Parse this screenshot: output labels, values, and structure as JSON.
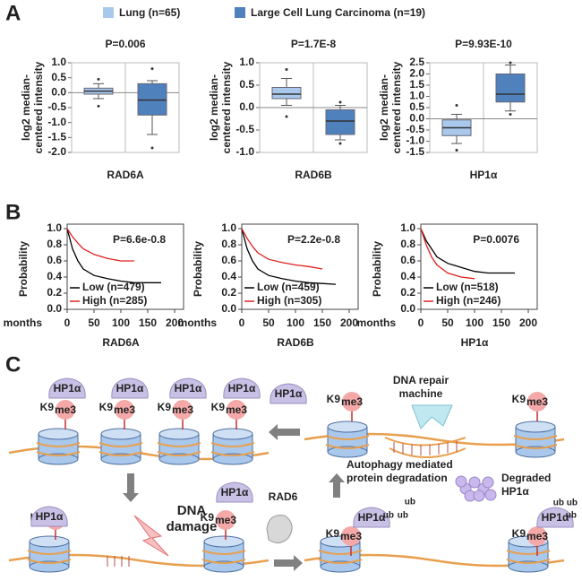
{
  "panels": [
    "A",
    "B",
    "C"
  ],
  "legend": [
    {
      "name": "Lung (n=65)",
      "color": "#a9c8ec"
    },
    {
      "name": "Large Cell Lung Carcinoma (n=19)",
      "color": "#4f81bd"
    }
  ],
  "chart_data": [
    {
      "type": "box",
      "title": "P=0.006",
      "ylabel": [
        "log2 median-",
        "centered intensity"
      ],
      "xlabel": "RAD6A",
      "ylim": [
        -2.0,
        1.0
      ],
      "yticks": [
        {
          "value": 1.0,
          "label": "1.0"
        },
        {
          "value": 0.5,
          "label": "0.5"
        },
        {
          "value": 0.0,
          "label": "0.0"
        },
        {
          "value": -0.5,
          "label": "-0.5"
        },
        {
          "value": -1.0,
          "label": "-1.0"
        },
        {
          "value": -1.5,
          "label": "-1.5"
        },
        {
          "value": -2.0,
          "label": "-2.0"
        }
      ],
      "boxes": [
        {
          "whislo": -0.2,
          "q1": -0.05,
          "med": 0.05,
          "q3": 0.15,
          "whishi": 0.3,
          "fliers": [
            0.45,
            -0.45
          ]
        },
        {
          "whislo": -1.4,
          "q1": -0.75,
          "med": -0.25,
          "q3": 0.3,
          "whishi": 0.4,
          "fliers": [
            0.8,
            -1.85
          ]
        }
      ]
    },
    {
      "type": "box",
      "title": "P=1.7E-8",
      "ylabel": [
        "log2 median-",
        "centered intensity"
      ],
      "xlabel": "RAD6B",
      "ylim": [
        -1.0,
        1.0
      ],
      "yticks": [
        {
          "value": 1.0,
          "label": "1.0"
        },
        {
          "value": 0.5,
          "label": "0.5"
        },
        {
          "value": 0.0,
          "label": "0.0"
        },
        {
          "value": -0.5,
          "label": "-0.5"
        },
        {
          "value": -1.0,
          "label": "-1.0"
        }
      ],
      "boxes": [
        {
          "whislo": 0.05,
          "q1": 0.2,
          "med": 0.3,
          "q3": 0.45,
          "whishi": 0.65,
          "fliers": [
            0.85,
            -0.2
          ]
        },
        {
          "whislo": -0.72,
          "q1": -0.6,
          "med": -0.3,
          "q3": -0.05,
          "whishi": 0.05,
          "fliers": [
            0.12,
            -0.8
          ]
        }
      ]
    },
    {
      "type": "box",
      "title": "P=9.93E-10",
      "ylabel": [
        "log2 median-",
        "centered intensity"
      ],
      "xlabel": "HP1α",
      "ylim": [
        -1.5,
        2.5
      ],
      "yticks": [
        {
          "value": 2.5,
          "label": "2.5"
        },
        {
          "value": 2.0,
          "label": "2.0"
        },
        {
          "value": 1.5,
          "label": "1.5"
        },
        {
          "value": 1.0,
          "label": "1.0"
        },
        {
          "value": 0.5,
          "label": "0.5"
        },
        {
          "value": 0.0,
          "label": "0.0"
        },
        {
          "value": -0.5,
          "label": "-0.5"
        },
        {
          "value": -1.0,
          "label": "-1.0"
        },
        {
          "value": -1.5,
          "label": "-1.5"
        }
      ],
      "boxes": [
        {
          "whislo": -1.1,
          "q1": -0.75,
          "med": -0.4,
          "q3": -0.05,
          "whishi": 0.2,
          "fliers": [
            0.6,
            -1.4
          ]
        },
        {
          "whislo": 0.35,
          "q1": 0.75,
          "med": 1.1,
          "q3": 2.0,
          "whishi": 2.4,
          "fliers": [
            2.5,
            0.2
          ]
        }
      ]
    },
    {
      "type": "line",
      "title": "P=6.6e-0.8",
      "ylabel": "Probability",
      "xunit": "months",
      "xlabel": "RAD6A",
      "xlim": [
        0,
        200
      ],
      "xticks": [
        0,
        50,
        100,
        150,
        200
      ],
      "ylim": [
        0,
        1
      ],
      "yticks": [
        {
          "value": 0,
          "label": "0.0"
        },
        {
          "value": 0.2,
          "label": "0.2"
        },
        {
          "value": 0.4,
          "label": "0.4"
        },
        {
          "value": 0.6,
          "label": "0.6"
        },
        {
          "value": 0.8,
          "label": "0.8"
        },
        {
          "value": 1,
          "label": "1.0"
        }
      ],
      "x": [
        0,
        10,
        20,
        30,
        50,
        75,
        100,
        125,
        150,
        175
      ],
      "series": [
        {
          "name": "Low (n=479)",
          "color": "#000000",
          "values": [
            1,
            0.75,
            0.6,
            0.5,
            0.42,
            0.38,
            0.35,
            0.33,
            0.33,
            0.33
          ]
        },
        {
          "name": "High (n=285)",
          "color": "#e02020",
          "values": [
            1,
            0.9,
            0.82,
            0.75,
            0.68,
            0.63,
            0.6,
            0.6,
            null,
            null
          ]
        }
      ]
    },
    {
      "type": "line",
      "title": "P=2.2e-0.8",
      "ylabel": "Probability",
      "xunit": "months",
      "xlabel": "RAD6B",
      "xlim": [
        0,
        200
      ],
      "xticks": [
        0,
        50,
        100,
        150,
        200
      ],
      "ylim": [
        0,
        1
      ],
      "yticks": [
        {
          "value": 0,
          "label": "0.0"
        },
        {
          "value": 0.2,
          "label": "0.2"
        },
        {
          "value": 0.4,
          "label": "0.4"
        },
        {
          "value": 0.6,
          "label": "0.6"
        },
        {
          "value": 0.8,
          "label": "0.8"
        },
        {
          "value": 1,
          "label": "1.0"
        }
      ],
      "x": [
        0,
        10,
        20,
        30,
        50,
        75,
        100,
        125,
        150,
        175
      ],
      "series": [
        {
          "name": "Low (n=459)",
          "color": "#000000",
          "values": [
            1,
            0.75,
            0.6,
            0.5,
            0.42,
            0.38,
            0.35,
            0.33,
            0.32,
            0.31
          ]
        },
        {
          "name": "High (n=305)",
          "color": "#e02020",
          "values": [
            1,
            0.88,
            0.78,
            0.7,
            0.62,
            0.58,
            0.55,
            0.53,
            0.5,
            null
          ]
        }
      ]
    },
    {
      "type": "line",
      "title": "P=0.0076",
      "ylabel": "Probability",
      "xunit": "months",
      "xlabel": "HP1α",
      "xlim": [
        0,
        200
      ],
      "xticks": [
        0,
        50,
        100,
        150,
        200
      ],
      "ylim": [
        0,
        1
      ],
      "yticks": [
        {
          "value": 0,
          "label": "0.0"
        },
        {
          "value": 0.2,
          "label": "0.2"
        },
        {
          "value": 0.4,
          "label": "0.4"
        },
        {
          "value": 0.6,
          "label": "0.6"
        },
        {
          "value": 0.8,
          "label": "0.8"
        },
        {
          "value": 1,
          "label": "1.0"
        }
      ],
      "x": [
        0,
        10,
        20,
        30,
        50,
        75,
        100,
        125,
        150,
        175
      ],
      "series": [
        {
          "name": "Low (n=518)",
          "color": "#000000",
          "values": [
            1,
            0.85,
            0.75,
            0.65,
            0.57,
            0.52,
            0.47,
            0.45,
            0.45,
            0.45
          ]
        },
        {
          "name": "High (n=246)",
          "color": "#e02020",
          "values": [
            1,
            0.8,
            0.65,
            0.55,
            0.45,
            0.4,
            0.38,
            null,
            null,
            null
          ]
        }
      ]
    }
  ],
  "diagram": {
    "hp1a": "HP1α",
    "k9": "K9",
    "me3": "me3",
    "dna_damage": [
      "DNA",
      "damage"
    ],
    "rad6": "RAD6",
    "repair": [
      "DNA repair",
      "machine"
    ],
    "autophagy": [
      "Autophagy mediated",
      "protein degradation"
    ],
    "degraded": [
      "Degraded",
      "HP1α"
    ],
    "ub": "ub"
  }
}
